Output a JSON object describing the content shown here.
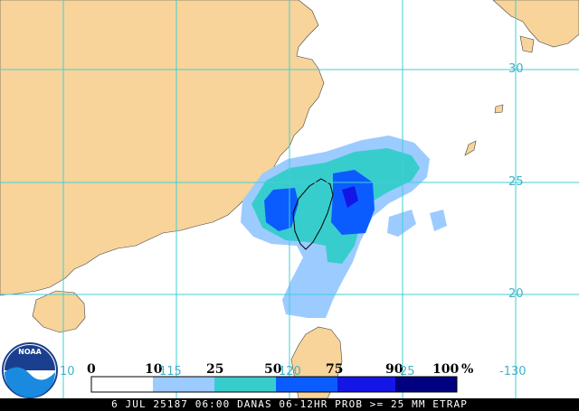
{
  "logo": {
    "text": "NOAA"
  },
  "grid": {
    "lat_labels": [
      "30",
      "25",
      "20"
    ],
    "lon_labels": [
      "10",
      "115",
      "120",
      "25",
      "-130"
    ]
  },
  "legend": {
    "unit": "%",
    "ticks": [
      "0",
      "10",
      "25",
      "50",
      "75",
      "90",
      "100"
    ],
    "colors": [
      "#ffffff",
      "#9ccbff",
      "#38cdcd",
      "#0a5cff",
      "#1416e6",
      "#000080"
    ]
  },
  "status_bar": {
    "text": "6 JUL 25187 06:00 DANAS 06-12HR PROB >= 25 MM ETRAP"
  },
  "colors": {
    "land": "#f8d49a",
    "ocean": "#ffffff",
    "grid": "#3fcfd6",
    "coast": "#000000"
  }
}
